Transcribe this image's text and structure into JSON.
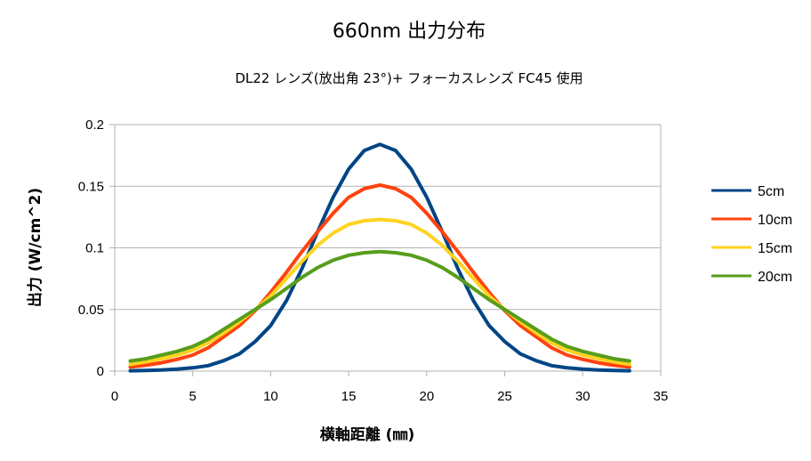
{
  "chart_data": {
    "type": "line",
    "title": "660nm 出力分布",
    "subtitle": "DL22 レンズ(放出角 23°)+ フォーカスレンズ FC45 使用",
    "xlabel": "横軸距離 (㎜)",
    "ylabel": "出力 (W/cm^2)",
    "xlim": [
      0,
      35
    ],
    "ylim": [
      0,
      0.2
    ],
    "xticks": [
      "0",
      "5",
      "10",
      "15",
      "20",
      "25",
      "30",
      "35"
    ],
    "yticks": [
      "0",
      "0.05",
      "0.1",
      "0.15",
      "0.2"
    ],
    "grid": "horizontal",
    "legend_position": "right",
    "x": [
      1,
      2,
      3,
      4,
      5,
      6,
      7,
      8,
      9,
      10,
      11,
      12,
      13,
      14,
      15,
      16,
      17,
      18,
      19,
      20,
      21,
      22,
      23,
      24,
      25,
      26,
      27,
      28,
      29,
      30,
      31,
      32,
      33
    ],
    "series": [
      {
        "name": "5cm",
        "color": "#004586",
        "values": [
          0.0003,
          0.0005,
          0.0009,
          0.0016,
          0.0027,
          0.0045,
          0.0085,
          0.014,
          0.024,
          0.037,
          0.057,
          0.083,
          0.113,
          0.141,
          0.164,
          0.179,
          0.184,
          0.179,
          0.164,
          0.141,
          0.113,
          0.083,
          0.057,
          0.037,
          0.024,
          0.014,
          0.0085,
          0.0045,
          0.0027,
          0.0016,
          0.0009,
          0.0005,
          0.0003
        ]
      },
      {
        "name": "10cm",
        "color": "#ff420e",
        "values": [
          0.0033,
          0.0048,
          0.0068,
          0.0095,
          0.013,
          0.019,
          0.028,
          0.037,
          0.049,
          0.064,
          0.08,
          0.097,
          0.113,
          0.128,
          0.141,
          0.148,
          0.151,
          0.148,
          0.141,
          0.128,
          0.113,
          0.097,
          0.08,
          0.064,
          0.049,
          0.037,
          0.028,
          0.019,
          0.013,
          0.0095,
          0.0068,
          0.0048,
          0.0033
        ]
      },
      {
        "name": "15cm",
        "color": "#ffd320",
        "values": [
          0.0055,
          0.0075,
          0.01,
          0.013,
          0.017,
          0.023,
          0.031,
          0.04,
          0.05,
          0.061,
          0.075,
          0.089,
          0.102,
          0.112,
          0.119,
          0.122,
          0.123,
          0.122,
          0.119,
          0.112,
          0.102,
          0.089,
          0.075,
          0.061,
          0.05,
          0.04,
          0.031,
          0.023,
          0.017,
          0.013,
          0.01,
          0.0075,
          0.0055
        ]
      },
      {
        "name": "20cm",
        "color": "#579d1c",
        "values": [
          0.0082,
          0.01,
          0.013,
          0.016,
          0.02,
          0.026,
          0.034,
          0.042,
          0.05,
          0.058,
          0.067,
          0.076,
          0.084,
          0.09,
          0.094,
          0.096,
          0.097,
          0.096,
          0.094,
          0.09,
          0.084,
          0.076,
          0.067,
          0.058,
          0.05,
          0.042,
          0.034,
          0.026,
          0.02,
          0.016,
          0.013,
          0.01,
          0.0082
        ]
      }
    ]
  }
}
